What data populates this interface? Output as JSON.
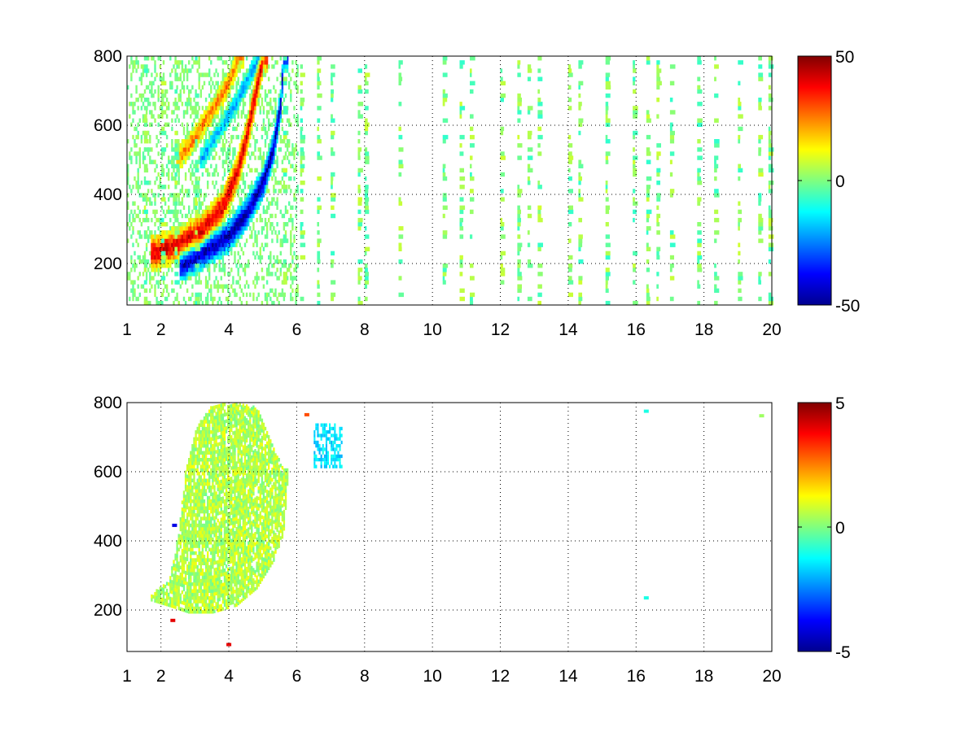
{
  "chart_data": [
    {
      "type": "heatmap",
      "title": "",
      "xlabel": "",
      "ylabel": "",
      "xlim": [
        1,
        20
      ],
      "ylim": [
        80,
        800
      ],
      "xticks": [
        1,
        2,
        4,
        6,
        8,
        10,
        12,
        14,
        16,
        18,
        20
      ],
      "yticks": [
        200,
        400,
        600,
        800
      ],
      "xtick_labels": [
        "1",
        "2",
        "4",
        "6",
        "8",
        "10",
        "12",
        "14",
        "16",
        "18",
        "20"
      ],
      "ytick_labels": [
        "200",
        "400",
        "600",
        "800"
      ],
      "grid": true,
      "grid_style": "dotted",
      "colormap": "jet",
      "clim": [
        -50,
        50
      ],
      "colorbar_ticks": [
        -50,
        0,
        50
      ],
      "colorbar_labels": [
        "-50",
        "0",
        "50"
      ],
      "features": [
        {
          "kind": "band",
          "sign": "positive",
          "level": 40,
          "curve": [
            [
              1.8,
              225
            ],
            [
              2.5,
              250
            ],
            [
              3.2,
              290
            ],
            [
              3.8,
              360
            ],
            [
              4.2,
              450
            ],
            [
              4.5,
              560
            ],
            [
              4.8,
              700
            ],
            [
              5.0,
              800
            ]
          ],
          "width": 50
        },
        {
          "kind": "band",
          "sign": "negative",
          "level": -45,
          "curve": [
            [
              2.6,
              190
            ],
            [
              3.3,
              230
            ],
            [
              4.0,
              275
            ],
            [
              4.5,
              340
            ],
            [
              5.0,
              430
            ],
            [
              5.3,
              530
            ],
            [
              5.5,
              650
            ],
            [
              5.6,
              800
            ]
          ],
          "width": 45
        },
        {
          "kind": "band",
          "sign": "positive",
          "level": 25,
          "curve": [
            [
              2.5,
              500
            ],
            [
              3.0,
              560
            ],
            [
              3.5,
              640
            ],
            [
              4.0,
              720
            ],
            [
              4.3,
              800
            ]
          ],
          "width": 35
        },
        {
          "kind": "band",
          "sign": "negative",
          "level": -20,
          "curve": [
            [
              3.2,
              500
            ],
            [
              3.7,
              580
            ],
            [
              4.2,
              660
            ],
            [
              4.6,
              740
            ],
            [
              4.9,
              800
            ]
          ],
          "width": 30
        }
      ],
      "noise_columns": [
        1.5,
        2.0,
        2.4,
        3.0,
        5.6,
        6.1,
        6.6,
        7.0,
        7.8,
        8.0,
        9.0,
        10.3,
        10.8,
        11.1,
        12.0,
        12.5,
        12.8,
        13.1,
        14.0,
        14.3,
        15.1,
        15.9,
        16.3,
        16.6,
        17.0,
        17.8,
        18.3,
        19.0,
        19.6,
        19.9
      ]
    },
    {
      "type": "heatmap",
      "title": "",
      "xlabel": "",
      "ylabel": "",
      "xlim": [
        1,
        20
      ],
      "ylim": [
        80,
        800
      ],
      "xticks": [
        1,
        2,
        4,
        6,
        8,
        10,
        12,
        14,
        16,
        18,
        20
      ],
      "yticks": [
        200,
        400,
        600,
        800
      ],
      "xtick_labels": [
        "1",
        "2",
        "4",
        "6",
        "8",
        "10",
        "12",
        "14",
        "16",
        "18",
        "20"
      ],
      "ytick_labels": [
        "200",
        "400",
        "600",
        "800"
      ],
      "grid": true,
      "grid_style": "dotted",
      "colormap": "jet",
      "clim": [
        -5,
        5
      ],
      "colorbar_ticks": [
        -5,
        0,
        5
      ],
      "colorbar_labels": [
        "-5",
        "0",
        "5"
      ],
      "region": {
        "value": 0.5,
        "lower_curve": [
          [
            1.7,
            225
          ],
          [
            2.2,
            210
          ],
          [
            2.8,
            190
          ],
          [
            3.5,
            190
          ],
          [
            4.2,
            210
          ],
          [
            4.8,
            260
          ],
          [
            5.3,
            340
          ],
          [
            5.6,
            420
          ],
          [
            5.7,
            560
          ]
        ],
        "upper_curve": [
          [
            1.7,
            240
          ],
          [
            2.2,
            280
          ],
          [
            2.5,
            420
          ],
          [
            2.7,
            600
          ],
          [
            3.0,
            720
          ],
          [
            3.5,
            790
          ],
          [
            4.2,
            795
          ],
          [
            4.8,
            780
          ],
          [
            5.3,
            660
          ],
          [
            5.6,
            600
          ]
        ]
      },
      "cyan_patch": {
        "value": -1.5,
        "x": [
          6.5,
          7.3
        ],
        "y": [
          610,
          740
        ]
      },
      "specks": [
        {
          "x": 16.3,
          "y": 775,
          "value": -1
        },
        {
          "x": 16.3,
          "y": 235,
          "value": -1
        },
        {
          "x": 19.7,
          "y": 762,
          "value": 0.3
        },
        {
          "x": 6.3,
          "y": 765,
          "value": 3
        },
        {
          "x": 4.0,
          "y": 100,
          "value": 4
        },
        {
          "x": 2.35,
          "y": 170,
          "value": 4
        },
        {
          "x": 2.4,
          "y": 445,
          "value": -4
        }
      ]
    }
  ]
}
